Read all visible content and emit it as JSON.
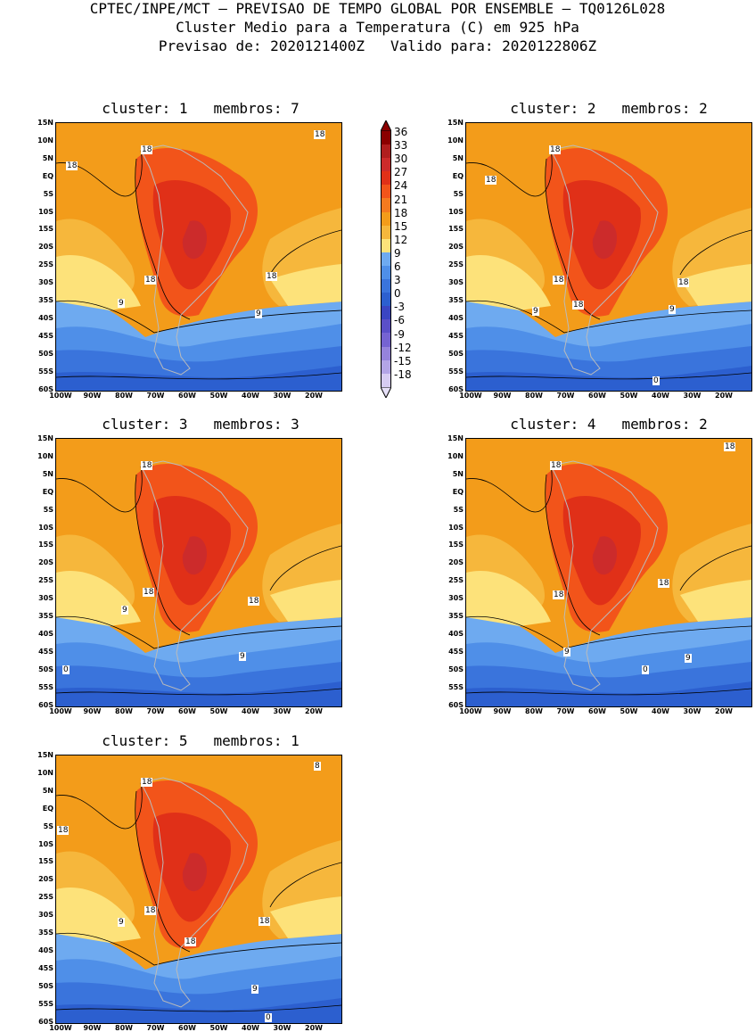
{
  "header": {
    "line1": "CPTEC/INPE/MCT – PREVISAO DE TEMPO GLOBAL POR ENSEMBLE – TQ0126L028",
    "line2": "Cluster Medio para a Temperatura (C) em 925 hPa",
    "line3": "Previsao de: 2020121400Z   Valido para: 2020122806Z"
  },
  "lat_labels": [
    "15N",
    "10N",
    "5N",
    "EQ",
    "5S",
    "10S",
    "15S",
    "20S",
    "25S",
    "30S",
    "35S",
    "40S",
    "45S",
    "50S",
    "55S",
    "60S"
  ],
  "lon_labels": [
    "100W",
    "90W",
    "80W",
    "70W",
    "60W",
    "50W",
    "40W",
    "30W",
    "20W"
  ],
  "colorbar": {
    "levels": [
      "36",
      "33",
      "30",
      "27",
      "24",
      "21",
      "18",
      "15",
      "12",
      "9",
      "6",
      "3",
      "0",
      "-3",
      "-6",
      "-9",
      "-12",
      "-15",
      "-18"
    ],
    "colors": [
      "#8b0000",
      "#b01e1e",
      "#cc2b2b",
      "#e03018",
      "#f2541a",
      "#f47a1f",
      "#f39c1a",
      "#f6b73c",
      "#fde27a",
      "#6eaaf0",
      "#4f8fe8",
      "#3a74dc",
      "#2c5fcf",
      "#3a45c2",
      "#5a4fc8",
      "#7563d2",
      "#9583dc",
      "#b3a5e6",
      "#d6ccf2"
    ]
  },
  "panels": [
    {
      "title": "cluster: 1   membros: 7",
      "labels": [
        "18",
        "18",
        "18",
        "18",
        "18",
        "9",
        "9"
      ]
    },
    {
      "title": "cluster: 2   membros: 2",
      "labels": [
        "18",
        "18",
        "18",
        "18",
        "18",
        "9",
        "9",
        "0"
      ]
    },
    {
      "title": "cluster: 3   membros: 3",
      "labels": [
        "18",
        "18",
        "18",
        "9",
        "9",
        "0"
      ]
    },
    {
      "title": "cluster: 4   membros: 2",
      "labels": [
        "18",
        "18",
        "18",
        "18",
        "9",
        "9",
        "0"
      ]
    },
    {
      "title": "cluster: 5   membros: 1",
      "labels": [
        "18",
        "18",
        "18",
        "18",
        "18",
        "9",
        "9",
        "0",
        "8"
      ]
    }
  ]
}
